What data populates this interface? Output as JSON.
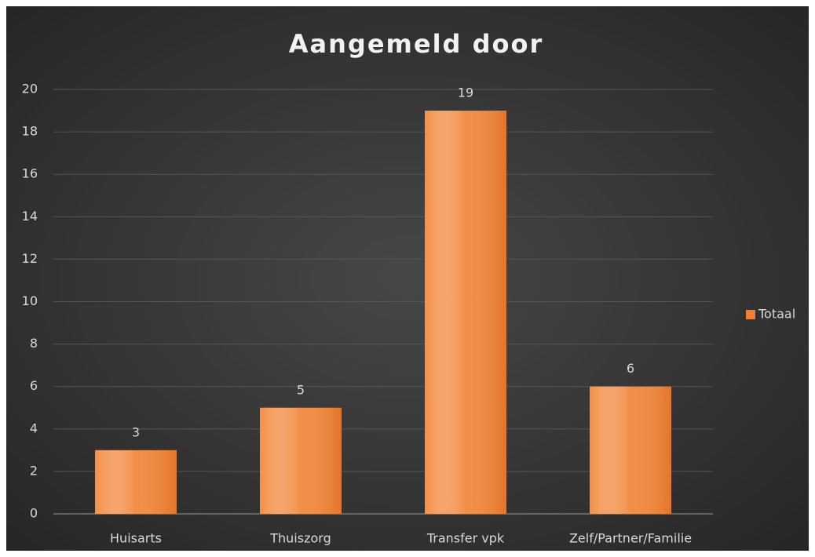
{
  "chart_data": {
    "type": "bar",
    "title": "Aangemeld door",
    "categories": [
      "Huisarts",
      "Thuiszorg",
      "Transfer vpk",
      "Zelf/Partner/Familie"
    ],
    "series": [
      {
        "name": "Totaal",
        "color": "#f07f2f",
        "values": [
          3,
          5,
          19,
          6
        ]
      }
    ],
    "ylim": [
      0,
      20
    ],
    "yticks": [
      0,
      2,
      4,
      6,
      8,
      10,
      12,
      14,
      16,
      18,
      20
    ],
    "grid": true,
    "legend": "right"
  }
}
